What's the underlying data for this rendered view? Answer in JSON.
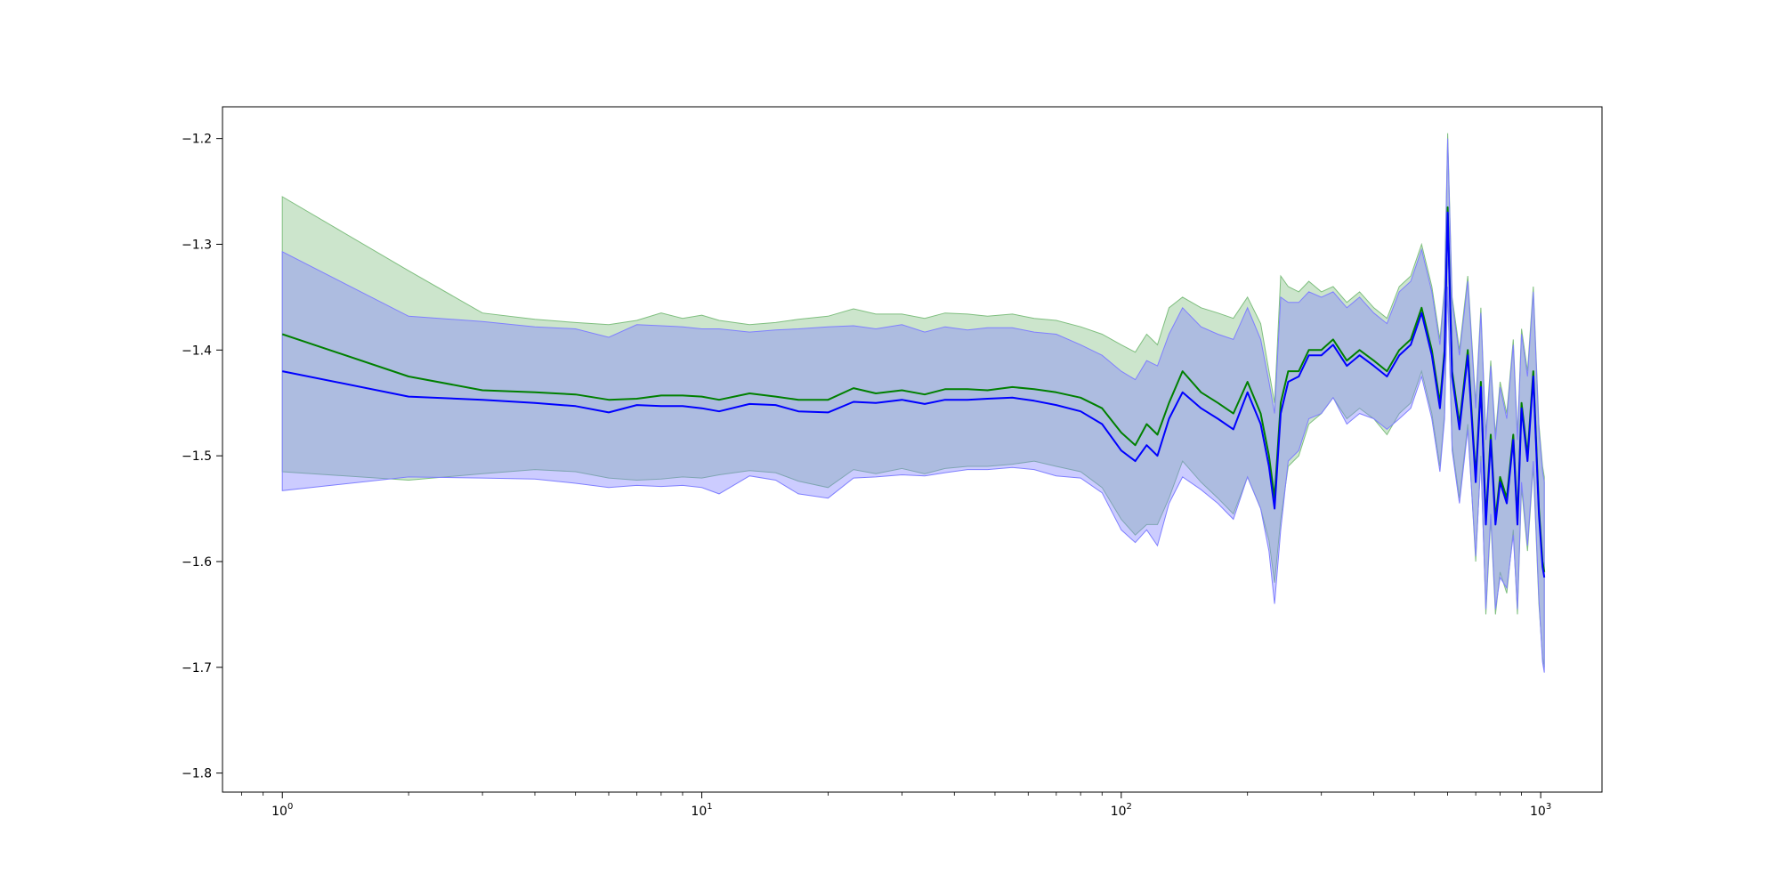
{
  "chart_data": {
    "type": "line",
    "title": "",
    "xlabel": "",
    "ylabel": "",
    "x_scale": "log",
    "xlim": [
      0.72,
      1400
    ],
    "ylim": [
      -1.818,
      -1.17
    ],
    "grid": false,
    "legend": "none",
    "x_ticks": [
      {
        "value": 1,
        "base": "10",
        "exp": "0"
      },
      {
        "value": 10,
        "base": "10",
        "exp": "1"
      },
      {
        "value": 100,
        "base": "10",
        "exp": "2"
      },
      {
        "value": 1000,
        "base": "10",
        "exp": "3"
      }
    ],
    "y_ticks": [
      {
        "value": -1.2,
        "label": "−1.2"
      },
      {
        "value": -1.3,
        "label": "−1.3"
      },
      {
        "value": -1.4,
        "label": "−1.4"
      },
      {
        "value": -1.5,
        "label": "−1.5"
      },
      {
        "value": -1.6,
        "label": "−1.6"
      },
      {
        "value": -1.7,
        "label": "−1.7"
      },
      {
        "value": -1.8,
        "label": "−1.8"
      }
    ],
    "x": [
      1,
      2,
      3,
      4,
      5,
      6,
      7,
      8,
      9,
      10,
      11,
      13,
      15,
      17,
      20,
      23,
      26,
      30,
      34,
      38,
      43,
      48,
      55,
      62,
      70,
      80,
      90,
      100,
      108,
      115,
      122,
      130,
      140,
      155,
      170,
      185,
      200,
      215,
      225,
      232,
      240,
      250,
      265,
      280,
      300,
      320,
      345,
      370,
      400,
      430,
      460,
      490,
      520,
      550,
      575,
      590,
      600,
      615,
      640,
      670,
      700,
      720,
      740,
      760,
      780,
      800,
      830,
      860,
      880,
      900,
      930,
      960,
      990,
      1010,
      1020
    ],
    "series": [
      {
        "color": "#008000",
        "band_color": "#7fbf7f",
        "values": [
          -1.385,
          -1.425,
          -1.438,
          -1.44,
          -1.442,
          -1.447,
          -1.446,
          -1.443,
          -1.443,
          -1.444,
          -1.447,
          -1.441,
          -1.444,
          -1.447,
          -1.447,
          -1.436,
          -1.441,
          -1.438,
          -1.442,
          -1.437,
          -1.437,
          -1.438,
          -1.435,
          -1.437,
          -1.44,
          -1.445,
          -1.455,
          -1.478,
          -1.49,
          -1.47,
          -1.48,
          -1.45,
          -1.42,
          -1.44,
          -1.45,
          -1.46,
          -1.43,
          -1.46,
          -1.5,
          -1.54,
          -1.45,
          -1.42,
          -1.42,
          -1.4,
          -1.4,
          -1.39,
          -1.41,
          -1.4,
          -1.41,
          -1.42,
          -1.4,
          -1.39,
          -1.36,
          -1.4,
          -1.45,
          -1.4,
          -1.265,
          -1.42,
          -1.47,
          -1.4,
          -1.52,
          -1.43,
          -1.56,
          -1.48,
          -1.56,
          -1.52,
          -1.54,
          -1.48,
          -1.56,
          -1.45,
          -1.5,
          -1.42,
          -1.55,
          -1.6,
          -1.61
        ],
        "upper": [
          -1.255,
          -1.325,
          -1.365,
          -1.371,
          -1.374,
          -1.376,
          -1.372,
          -1.365,
          -1.37,
          -1.367,
          -1.372,
          -1.376,
          -1.374,
          -1.371,
          -1.368,
          -1.361,
          -1.366,
          -1.366,
          -1.37,
          -1.365,
          -1.366,
          -1.368,
          -1.366,
          -1.37,
          -1.372,
          -1.378,
          -1.385,
          -1.395,
          -1.402,
          -1.385,
          -1.395,
          -1.36,
          -1.35,
          -1.36,
          -1.365,
          -1.37,
          -1.35,
          -1.375,
          -1.42,
          -1.45,
          -1.33,
          -1.34,
          -1.345,
          -1.335,
          -1.345,
          -1.34,
          -1.355,
          -1.345,
          -1.36,
          -1.37,
          -1.34,
          -1.33,
          -1.3,
          -1.34,
          -1.39,
          -1.34,
          -1.195,
          -1.35,
          -1.4,
          -1.33,
          -1.45,
          -1.36,
          -1.48,
          -1.41,
          -1.48,
          -1.43,
          -1.46,
          -1.39,
          -1.48,
          -1.38,
          -1.42,
          -1.34,
          -1.47,
          -1.51,
          -1.52
        ],
        "lower": [
          -1.515,
          -1.523,
          -1.517,
          -1.513,
          -1.515,
          -1.521,
          -1.523,
          -1.522,
          -1.52,
          -1.521,
          -1.518,
          -1.514,
          -1.516,
          -1.524,
          -1.53,
          -1.513,
          -1.517,
          -1.512,
          -1.517,
          -1.512,
          -1.51,
          -1.51,
          -1.508,
          -1.505,
          -1.51,
          -1.515,
          -1.53,
          -1.56,
          -1.575,
          -1.565,
          -1.565,
          -1.54,
          -1.505,
          -1.525,
          -1.54,
          -1.555,
          -1.52,
          -1.55,
          -1.58,
          -1.62,
          -1.56,
          -1.51,
          -1.5,
          -1.47,
          -1.46,
          -1.445,
          -1.465,
          -1.455,
          -1.465,
          -1.48,
          -1.46,
          -1.45,
          -1.42,
          -1.46,
          -1.51,
          -1.46,
          -1.34,
          -1.49,
          -1.54,
          -1.47,
          -1.6,
          -1.5,
          -1.65,
          -1.56,
          -1.65,
          -1.61,
          -1.63,
          -1.57,
          -1.65,
          -1.53,
          -1.59,
          -1.51,
          -1.64,
          -1.69,
          -1.7
        ]
      },
      {
        "color": "#0000ff",
        "band_color": "#7f7fff",
        "values": [
          -1.42,
          -1.444,
          -1.447,
          -1.45,
          -1.453,
          -1.459,
          -1.452,
          -1.453,
          -1.453,
          -1.455,
          -1.458,
          -1.451,
          -1.452,
          -1.458,
          -1.459,
          -1.449,
          -1.45,
          -1.447,
          -1.451,
          -1.447,
          -1.447,
          -1.446,
          -1.445,
          -1.448,
          -1.452,
          -1.458,
          -1.47,
          -1.495,
          -1.505,
          -1.49,
          -1.5,
          -1.465,
          -1.44,
          -1.455,
          -1.465,
          -1.475,
          -1.44,
          -1.47,
          -1.51,
          -1.55,
          -1.46,
          -1.43,
          -1.425,
          -1.405,
          -1.405,
          -1.395,
          -1.415,
          -1.405,
          -1.415,
          -1.425,
          -1.405,
          -1.395,
          -1.365,
          -1.405,
          -1.455,
          -1.405,
          -1.27,
          -1.425,
          -1.475,
          -1.405,
          -1.525,
          -1.435,
          -1.565,
          -1.485,
          -1.565,
          -1.525,
          -1.545,
          -1.485,
          -1.565,
          -1.455,
          -1.505,
          -1.425,
          -1.555,
          -1.605,
          -1.615
        ],
        "upper": [
          -1.307,
          -1.368,
          -1.373,
          -1.378,
          -1.38,
          -1.388,
          -1.376,
          -1.377,
          -1.378,
          -1.38,
          -1.38,
          -1.383,
          -1.381,
          -1.38,
          -1.378,
          -1.377,
          -1.38,
          -1.376,
          -1.383,
          -1.378,
          -1.381,
          -1.379,
          -1.379,
          -1.383,
          -1.385,
          -1.395,
          -1.405,
          -1.42,
          -1.428,
          -1.41,
          -1.415,
          -1.385,
          -1.36,
          -1.378,
          -1.385,
          -1.39,
          -1.36,
          -1.39,
          -1.43,
          -1.46,
          -1.35,
          -1.355,
          -1.355,
          -1.345,
          -1.35,
          -1.345,
          -1.36,
          -1.35,
          -1.365,
          -1.375,
          -1.345,
          -1.335,
          -1.305,
          -1.345,
          -1.395,
          -1.345,
          -1.2,
          -1.355,
          -1.405,
          -1.335,
          -1.455,
          -1.365,
          -1.485,
          -1.415,
          -1.485,
          -1.435,
          -1.465,
          -1.395,
          -1.485,
          -1.385,
          -1.425,
          -1.345,
          -1.475,
          -1.515,
          -1.525
        ],
        "lower": [
          -1.533,
          -1.52,
          -1.521,
          -1.522,
          -1.526,
          -1.53,
          -1.528,
          -1.529,
          -1.528,
          -1.53,
          -1.536,
          -1.519,
          -1.523,
          -1.536,
          -1.54,
          -1.521,
          -1.52,
          -1.518,
          -1.519,
          -1.516,
          -1.513,
          -1.513,
          -1.511,
          -1.513,
          -1.519,
          -1.521,
          -1.535,
          -1.57,
          -1.582,
          -1.57,
          -1.585,
          -1.545,
          -1.52,
          -1.532,
          -1.545,
          -1.56,
          -1.52,
          -1.55,
          -1.59,
          -1.64,
          -1.57,
          -1.505,
          -1.495,
          -1.465,
          -1.46,
          -1.445,
          -1.47,
          -1.46,
          -1.465,
          -1.475,
          -1.465,
          -1.455,
          -1.425,
          -1.465,
          -1.515,
          -1.465,
          -1.34,
          -1.495,
          -1.545,
          -1.475,
          -1.595,
          -1.505,
          -1.645,
          -1.555,
          -1.645,
          -1.615,
          -1.625,
          -1.575,
          -1.645,
          -1.525,
          -1.585,
          -1.505,
          -1.635,
          -1.695,
          -1.705
        ]
      }
    ]
  }
}
